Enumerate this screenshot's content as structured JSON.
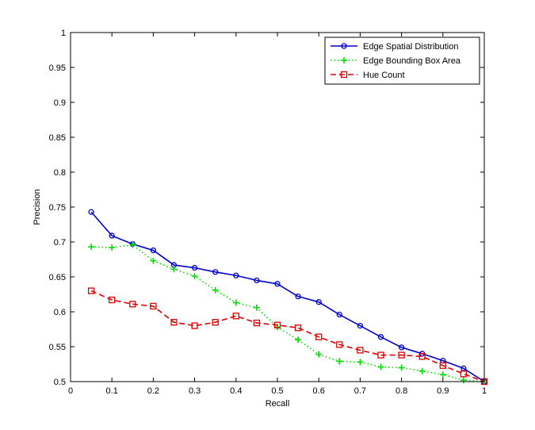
{
  "chart_data": {
    "type": "line",
    "title": "",
    "xlabel": "Recall",
    "ylabel": "Precision",
    "xlim": [
      0,
      1
    ],
    "ylim": [
      0.5,
      1
    ],
    "xticks": [
      0,
      0.1,
      0.2,
      0.3,
      0.4,
      0.5,
      0.6,
      0.7,
      0.8,
      0.9,
      1
    ],
    "xtick_labels": [
      "0",
      "0.1",
      "0.2",
      "0.3",
      "0.4",
      "0.5",
      "0.6",
      "0.7",
      "0.8",
      "0.9",
      "1"
    ],
    "yticks": [
      0.5,
      0.55,
      0.6,
      0.65,
      0.7,
      0.75,
      0.8,
      0.85,
      0.9,
      0.95,
      1
    ],
    "ytick_labels": [
      "0.5",
      "0.55",
      "0.6",
      "0.65",
      "0.7",
      "0.75",
      "0.8",
      "0.85",
      "0.9",
      "0.95",
      "1"
    ],
    "grid": false,
    "legend_position": "top-right",
    "series": [
      {
        "name": "Edge Spatial Distribution",
        "color": "#0000cc",
        "line_style": "solid",
        "marker": "circle",
        "x": [
          0.05,
          0.1,
          0.15,
          0.2,
          0.25,
          0.3,
          0.35,
          0.4,
          0.45,
          0.5,
          0.55,
          0.6,
          0.65,
          0.7,
          0.75,
          0.8,
          0.85,
          0.9,
          0.95,
          1.0
        ],
        "y": [
          0.743,
          0.709,
          0.697,
          0.688,
          0.667,
          0.663,
          0.657,
          0.652,
          0.645,
          0.64,
          0.622,
          0.614,
          0.596,
          0.58,
          0.564,
          0.549,
          0.54,
          0.53,
          0.519,
          0.5
        ]
      },
      {
        "name": "Edge Bounding Box Area",
        "color": "#00dd00",
        "line_style": "dotted",
        "marker": "plus",
        "x": [
          0.05,
          0.1,
          0.15,
          0.2,
          0.25,
          0.3,
          0.35,
          0.4,
          0.45,
          0.5,
          0.55,
          0.6,
          0.65,
          0.7,
          0.75,
          0.8,
          0.85,
          0.9,
          0.95,
          1.0
        ],
        "y": [
          0.693,
          0.692,
          0.696,
          0.673,
          0.661,
          0.651,
          0.631,
          0.613,
          0.606,
          0.578,
          0.56,
          0.539,
          0.529,
          0.528,
          0.521,
          0.52,
          0.515,
          0.51,
          0.502,
          0.5
        ]
      },
      {
        "name": "Hue Count",
        "color": "#dd0000",
        "line_style": "dashed",
        "marker": "square",
        "x": [
          0.05,
          0.1,
          0.15,
          0.2,
          0.25,
          0.3,
          0.35,
          0.4,
          0.45,
          0.5,
          0.55,
          0.6,
          0.65,
          0.7,
          0.75,
          0.8,
          0.85,
          0.9,
          0.95,
          1.0
        ],
        "y": [
          0.63,
          0.617,
          0.611,
          0.608,
          0.585,
          0.58,
          0.585,
          0.594,
          0.584,
          0.581,
          0.577,
          0.564,
          0.553,
          0.545,
          0.538,
          0.538,
          0.536,
          0.523,
          0.511,
          0.5
        ]
      }
    ]
  }
}
